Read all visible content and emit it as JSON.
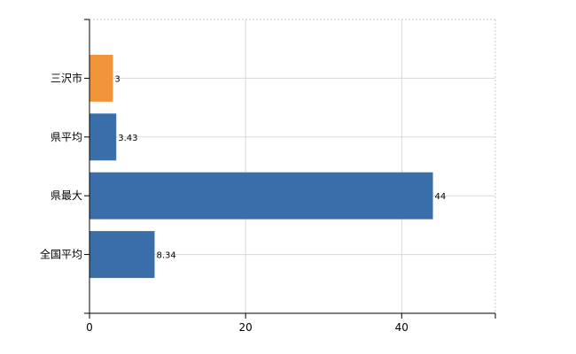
{
  "chart_data": {
    "type": "bar",
    "orientation": "horizontal",
    "categories": [
      "三沢市",
      "県平均",
      "県最大",
      "全国平均"
    ],
    "values": [
      3,
      3.43,
      44,
      8.34
    ],
    "data_labels": [
      "3",
      "3.43",
      "44",
      "8.34"
    ],
    "bar_colors": [
      "#f0943a",
      "#3a6ea8",
      "#3a6ea8",
      "#3a6ea8"
    ],
    "xlim": [
      0,
      52
    ],
    "x_ticks": [
      0,
      20,
      40
    ],
    "x_tick_labels": [
      "0",
      "20",
      "40"
    ],
    "grid": true,
    "legend": "none"
  }
}
